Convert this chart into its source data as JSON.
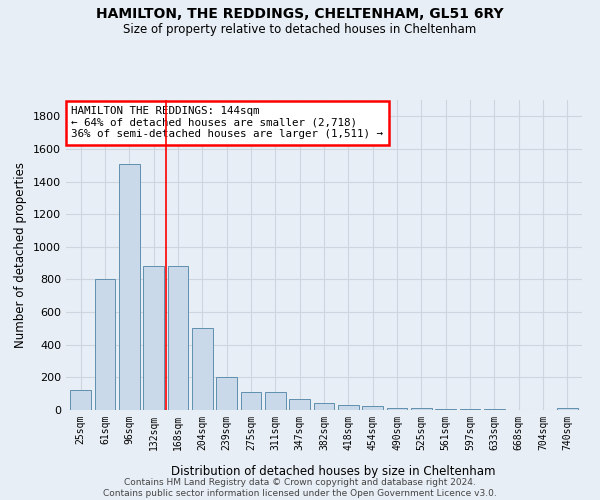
{
  "title": "HAMILTON, THE REDDINGS, CHELTENHAM, GL51 6RY",
  "subtitle": "Size of property relative to detached houses in Cheltenham",
  "xlabel": "Distribution of detached houses by size in Cheltenham",
  "ylabel": "Number of detached properties",
  "categories": [
    "25sqm",
    "61sqm",
    "96sqm",
    "132sqm",
    "168sqm",
    "204sqm",
    "239sqm",
    "275sqm",
    "311sqm",
    "347sqm",
    "382sqm",
    "418sqm",
    "454sqm",
    "490sqm",
    "525sqm",
    "561sqm",
    "597sqm",
    "633sqm",
    "668sqm",
    "704sqm",
    "740sqm"
  ],
  "values": [
    125,
    800,
    1510,
    880,
    880,
    500,
    205,
    110,
    110,
    65,
    40,
    30,
    25,
    15,
    10,
    8,
    5,
    5,
    3,
    2,
    15
  ],
  "bar_color": "#c9d9ea",
  "bar_edge_color": "#6090b0",
  "grid_color": "#ccd5e0",
  "background_color": "#e8eef5",
  "redline_x": 3.5,
  "annotation_text": "HAMILTON THE REDDINGS: 144sqm\n← 64% of detached houses are smaller (2,718)\n36% of semi-detached houses are larger (1,511) →",
  "annotation_box_color": "white",
  "annotation_box_edge": "red",
  "ylim": [
    0,
    1900
  ],
  "yticks": [
    0,
    200,
    400,
    600,
    800,
    1000,
    1200,
    1400,
    1600,
    1800
  ],
  "footer": "Contains HM Land Registry data © Crown copyright and database right 2024.\nContains public sector information licensed under the Open Government Licence v3.0."
}
